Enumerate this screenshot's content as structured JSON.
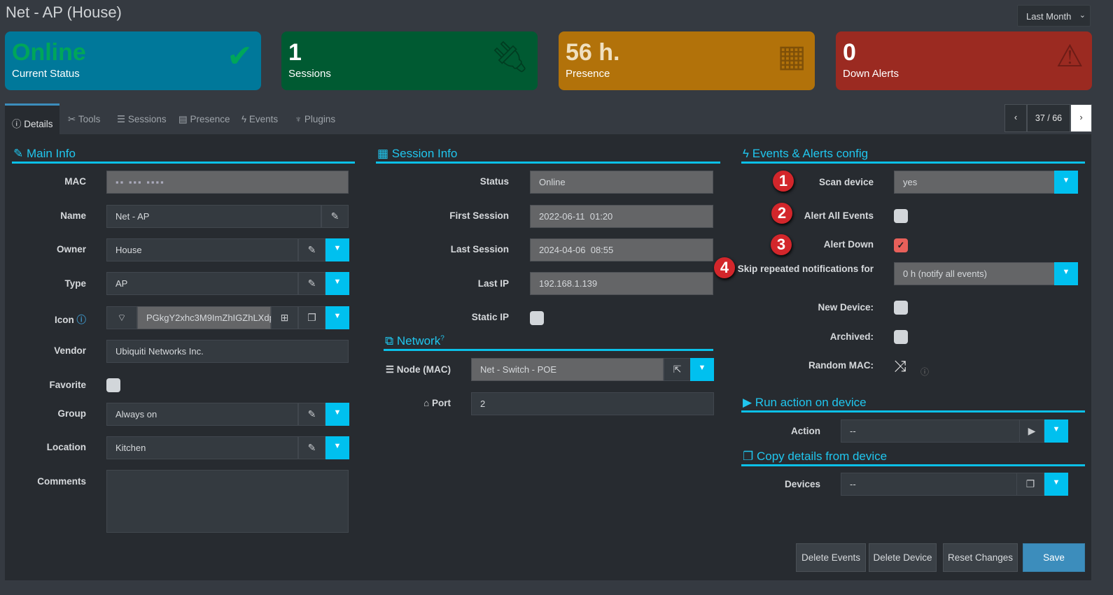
{
  "header": {
    "title": "Net - AP (House)",
    "period": "Last Month"
  },
  "cards": [
    {
      "value": "Online",
      "label": "Current Status",
      "icon": "check-icon",
      "color": "#00789a",
      "value_color": "#00a65a"
    },
    {
      "value": "1",
      "label": "Sessions",
      "icon": "plug-icon",
      "color": "#005a32"
    },
    {
      "value": "56 h.",
      "label": "Presence",
      "icon": "calendar-icon",
      "color": "#b2720a"
    },
    {
      "value": "0",
      "label": "Down Alerts",
      "icon": "warning-icon",
      "color": "#9b2a21"
    }
  ],
  "tabs": [
    {
      "label": "Details",
      "icon": "info-icon"
    },
    {
      "label": "Tools",
      "icon": "tools-icon"
    },
    {
      "label": "Sessions",
      "icon": "list-ol-icon"
    },
    {
      "label": "Presence",
      "icon": "calendar-icon"
    },
    {
      "label": "Events",
      "icon": "bolt-icon"
    },
    {
      "label": "Plugins",
      "icon": "plug-icon"
    }
  ],
  "pager": {
    "text": "37 / 66"
  },
  "main_info": {
    "title": "Main Info",
    "mac_label": "MAC",
    "mac_value": "",
    "name_label": "Name",
    "name_value": "Net - AP",
    "owner_label": "Owner",
    "owner_value": "House",
    "type_label": "Type",
    "type_value": "AP",
    "icon_label": "Icon",
    "icon_value": "PGkgY2xhc3M9ImZhIGZhLXdp",
    "vendor_label": "Vendor",
    "vendor_value": "Ubiquiti Networks Inc.",
    "favorite_label": "Favorite",
    "favorite_checked": false,
    "group_label": "Group",
    "group_value": "Always on",
    "location_label": "Location",
    "location_value": "Kitchen",
    "comments_label": "Comments",
    "comments_value": ""
  },
  "session_info": {
    "title": "Session Info",
    "status_label": "Status",
    "status_value": "Online",
    "first_label": "First Session",
    "first_value": "2022-06-11  01:20",
    "last_label": "Last Session",
    "last_value": "2024-04-06  08:55",
    "ip_label": "Last IP",
    "ip_value": "192.168.1.139",
    "static_label": "Static IP",
    "static_checked": false
  },
  "network": {
    "title": "Network",
    "node_label": "Node (MAC)",
    "node_value": "Net - Switch - POE",
    "port_label": "Port",
    "port_value": "2"
  },
  "events": {
    "title": "Events & Alerts config",
    "scan_label": "Scan device",
    "scan_value": "yes",
    "alert_all_label": "Alert All Events",
    "alert_all_checked": false,
    "alert_down_label": "Alert Down",
    "alert_down_checked": true,
    "skip_label": "Skip repeated notifications for",
    "skip_value": "0 h (notify all events)",
    "new_label": "New Device:",
    "new_checked": false,
    "archived_label": "Archived:",
    "archived_checked": false,
    "random_label": "Random MAC:",
    "badges": [
      "1",
      "2",
      "3",
      "4"
    ]
  },
  "run_action": {
    "title": "Run action on device",
    "action_label": "Action",
    "action_value": "--"
  },
  "copy": {
    "title": "Copy details from device",
    "devices_label": "Devices",
    "devices_value": "--"
  },
  "footer": {
    "delete_events": "Delete Events",
    "delete_device": "Delete Device",
    "reset": "Reset Changes",
    "save": "Save"
  }
}
